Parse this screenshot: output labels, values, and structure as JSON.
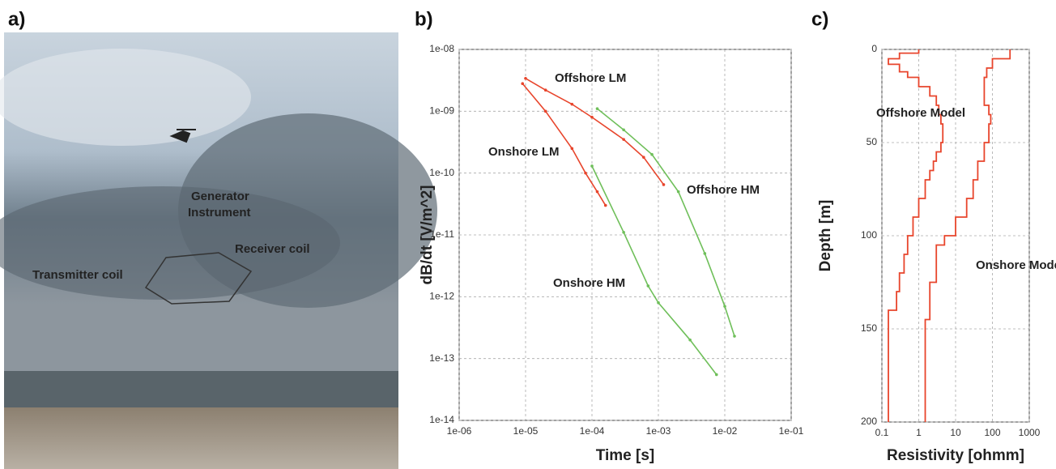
{
  "photo": {
    "label": "a)",
    "annotations": [
      "Generator",
      "Instrument",
      "Receiver coil",
      "Transmitter coil"
    ]
  },
  "chart_data": [
    {
      "type": "line",
      "panel_label": "b)",
      "x_label": "Time [s]",
      "y_label": "dB/dt [V/m^2]",
      "log_x": true,
      "log_y": true,
      "grid": true,
      "xlim": [
        1e-06,
        0.1
      ],
      "ylim": [
        1e-14,
        1e-08
      ],
      "xticks": [
        {
          "value": 1e-06,
          "label": "1e-06"
        },
        {
          "value": 1e-05,
          "label": "1e-05"
        },
        {
          "value": 0.0001,
          "label": "1e-04"
        },
        {
          "value": 0.001,
          "label": "1e-03"
        },
        {
          "value": 0.01,
          "label": "1e-02"
        },
        {
          "value": 0.1,
          "label": "1e-01"
        }
      ],
      "yticks": [
        {
          "value": 1e-14,
          "label": "1e-14"
        },
        {
          "value": 1e-13,
          "label": "1e-13"
        },
        {
          "value": 1e-12,
          "label": "1e-12"
        },
        {
          "value": 1e-11,
          "label": "1e-11"
        },
        {
          "value": 1e-10,
          "label": "1e-10"
        },
        {
          "value": 1e-09,
          "label": "1e-09"
        },
        {
          "value": 1e-08,
          "label": "1e-08"
        }
      ],
      "series": [
        {
          "name": "Offshore LM",
          "color": "#e8452c",
          "x": [
            1e-05,
            2e-05,
            5e-05,
            0.0001,
            0.0003,
            0.0006,
            0.0012
          ],
          "values": [
            3.4e-09,
            2.2e-09,
            1.3e-09,
            8e-10,
            3.5e-10,
            1.8e-10,
            6.5e-11
          ]
        },
        {
          "name": "Onshore LM",
          "color": "#e8452c",
          "x": [
            9e-06,
            2e-05,
            5e-05,
            8e-05,
            0.00012,
            0.00016
          ],
          "values": [
            2.8e-09,
            1e-09,
            2.5e-10,
            1e-10,
            5e-11,
            3e-11
          ]
        },
        {
          "name": "Offshore HM",
          "color": "#6fbf5a",
          "x": [
            0.00012,
            0.0003,
            0.0008,
            0.002,
            0.005,
            0.01,
            0.014
          ],
          "values": [
            1.1e-09,
            5e-10,
            2e-10,
            5e-11,
            5e-12,
            7e-13,
            2.3e-13
          ]
        },
        {
          "name": "Onshore HM",
          "color": "#6fbf5a",
          "x": [
            0.0001,
            0.0003,
            0.0007,
            0.001,
            0.003,
            0.0075
          ],
          "values": [
            1.3e-10,
            1.1e-11,
            1.5e-12,
            8e-13,
            2e-13,
            5.5e-14
          ]
        }
      ]
    },
    {
      "type": "step",
      "panel_label": "c)",
      "x_label": "Resistivity [ohmm]",
      "y_label": "Depth [m]",
      "log_x": true,
      "grid": true,
      "xlim": [
        0.1,
        1000
      ],
      "ylim": [
        0,
        200
      ],
      "xticks": [
        0.1,
        1,
        10,
        100,
        1000
      ],
      "yticks": [
        0,
        50,
        100,
        150,
        200
      ],
      "series": [
        {
          "name": "Offshore Model",
          "color": "#e8452c",
          "depths": [
            0,
            2,
            5,
            8,
            12,
            15,
            20,
            25,
            30,
            35,
            40,
            45,
            50,
            55,
            60,
            65,
            70,
            80,
            90,
            100,
            110,
            120,
            130,
            140
          ],
          "values": [
            1,
            0.3,
            0.15,
            0.3,
            0.5,
            1,
            2,
            3,
            3.5,
            4,
            4.5,
            4.5,
            4,
            3,
            2.5,
            2,
            1.5,
            1,
            0.7,
            0.5,
            0.4,
            0.3,
            0.25,
            0.15
          ]
        },
        {
          "name": "Onshore Model",
          "color": "#e8452c",
          "depths": [
            0,
            5,
            10,
            15,
            20,
            30,
            35,
            40,
            50,
            60,
            70,
            80,
            90,
            100,
            105,
            125,
            145
          ],
          "values": [
            300,
            100,
            70,
            60,
            60,
            80,
            90,
            80,
            60,
            40,
            30,
            20,
            10,
            5,
            3,
            2,
            1.5
          ]
        }
      ]
    }
  ]
}
